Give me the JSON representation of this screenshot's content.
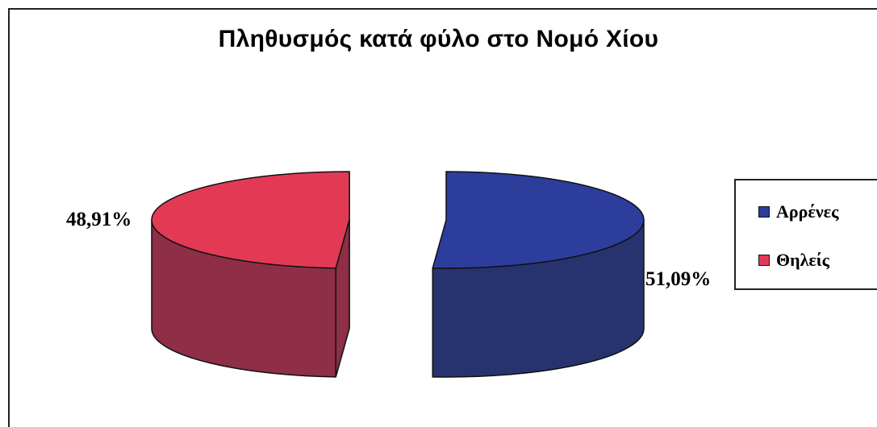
{
  "chart_data": {
    "type": "pie",
    "title": "Πληθυσμός κατά φύλο στο Νομό Χίου",
    "categories": [
      "Αρρένες",
      "Θηλείς"
    ],
    "values": [
      51.09,
      48.91
    ],
    "labels": [
      "51,09%",
      "48,91%"
    ],
    "colors": [
      "#2c3d9c",
      "#e23a55"
    ],
    "side_colors": [
      "#27336e",
      "#8e2f47"
    ],
    "legend": {
      "placement": "right",
      "entries": [
        "Αρρένες",
        "Θηλείς"
      ]
    },
    "style": "3d-exploded"
  }
}
